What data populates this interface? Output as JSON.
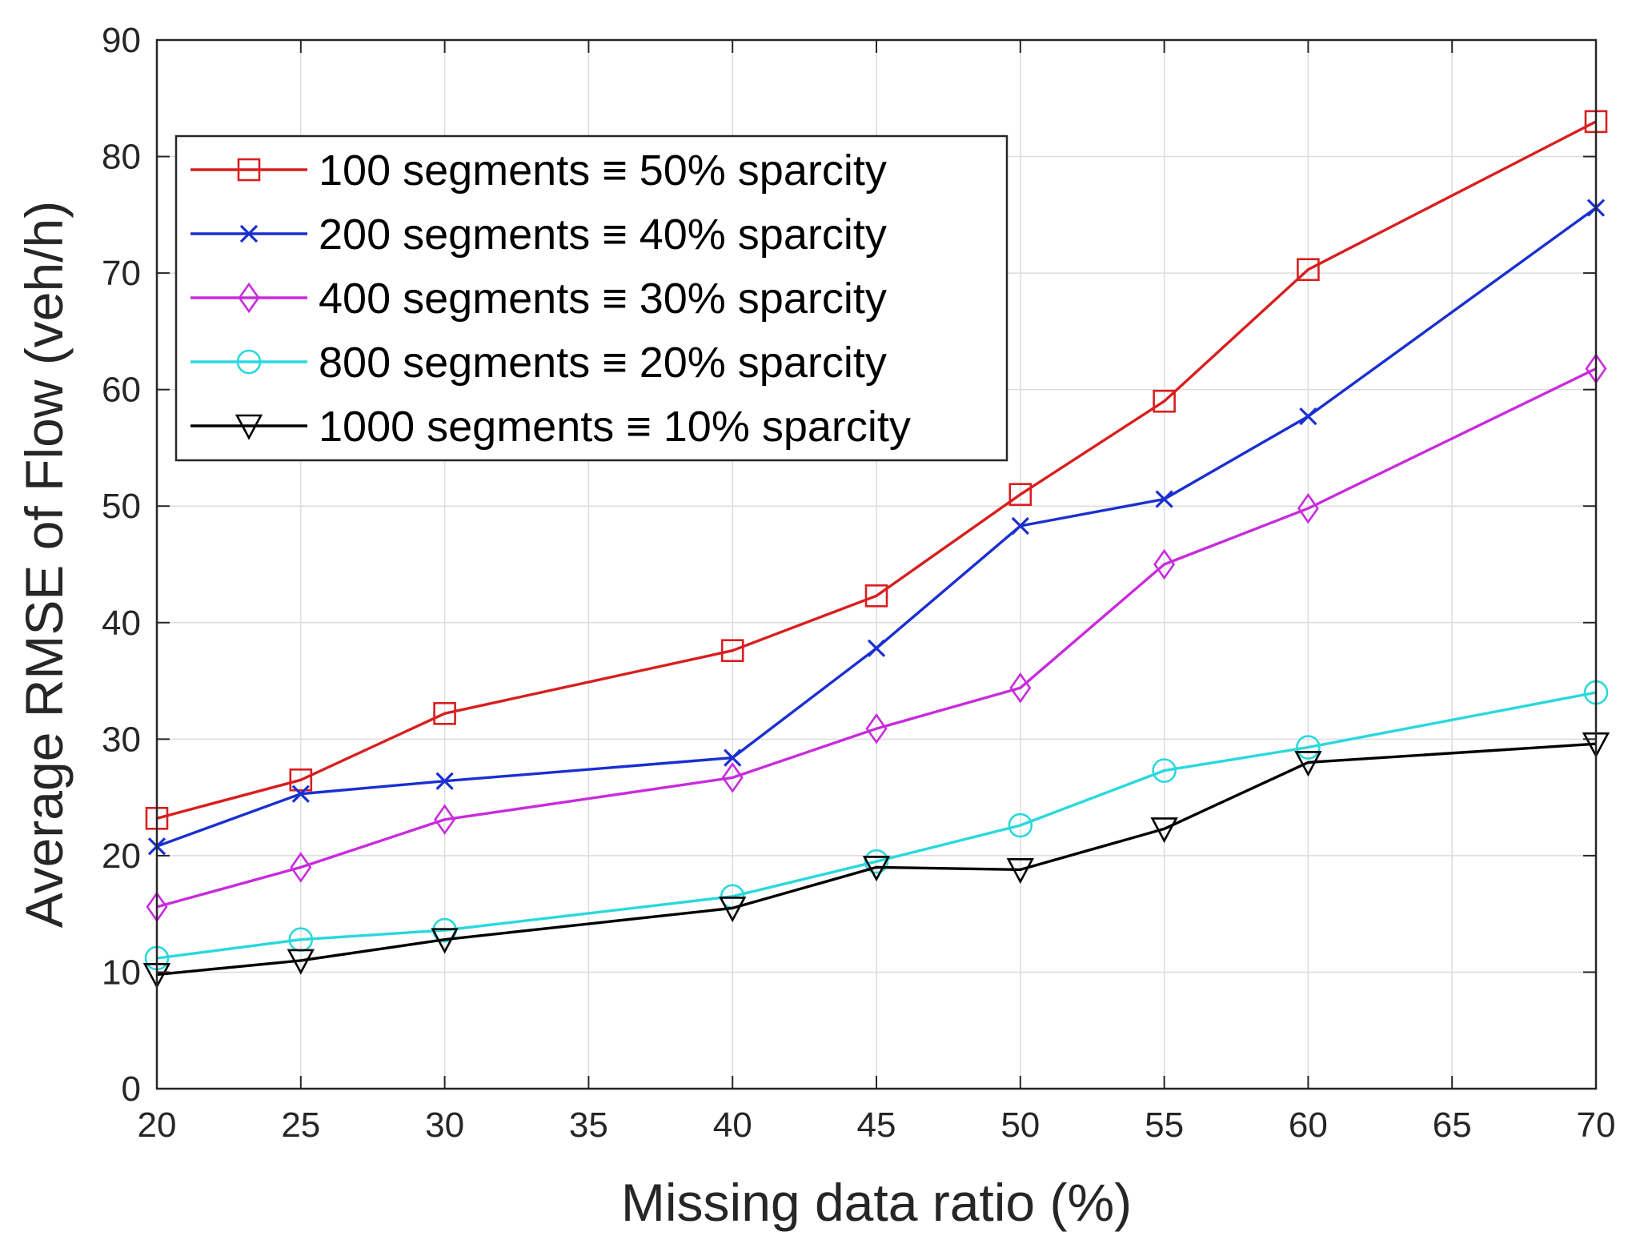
{
  "chart_data": {
    "type": "line",
    "title": "",
    "xlabel": "Missing data ratio (%)",
    "ylabel": "Average RMSE of Flow (veh/h)",
    "xlim": [
      20,
      70
    ],
    "ylim": [
      0,
      90
    ],
    "xticks": [
      20,
      25,
      30,
      35,
      40,
      45,
      50,
      55,
      60,
      65,
      70
    ],
    "yticks": [
      0,
      10,
      20,
      30,
      40,
      50,
      60,
      70,
      80,
      90
    ],
    "grid": true,
    "legend_position": "top-left",
    "x": [
      20,
      25,
      30,
      40,
      45,
      50,
      55,
      60,
      70
    ],
    "series": [
      {
        "name": "100 segments ≡ 50% sparcity",
        "color": "#d81e1e",
        "marker": "square",
        "values": [
          23.2,
          26.5,
          32.2,
          37.6,
          42.3,
          51.0,
          59.0,
          70.3,
          83.0
        ]
      },
      {
        "name": "200 segments ≡ 40% sparcity",
        "color": "#1a2fd0",
        "marker": "x",
        "values": [
          20.8,
          25.3,
          26.4,
          28.4,
          37.8,
          48.3,
          50.6,
          57.7,
          75.6
        ]
      },
      {
        "name": "400 segments ≡ 30% sparcity",
        "color": "#c82bdc",
        "marker": "diamond",
        "values": [
          15.6,
          19.0,
          23.1,
          26.7,
          30.9,
          34.4,
          45.0,
          49.8,
          61.8
        ]
      },
      {
        "name": "800 segments ≡ 20% sparcity",
        "color": "#2ad8dc",
        "marker": "circle",
        "values": [
          11.2,
          12.8,
          13.6,
          16.5,
          19.5,
          22.6,
          27.3,
          29.3,
          34.0
        ]
      },
      {
        "name": "1000 segments ≡ 10% sparcity",
        "color": "#000000",
        "marker": "triangle-down",
        "values": [
          9.8,
          11.0,
          12.8,
          15.5,
          19.0,
          18.8,
          22.3,
          28.0,
          29.6
        ]
      }
    ]
  }
}
